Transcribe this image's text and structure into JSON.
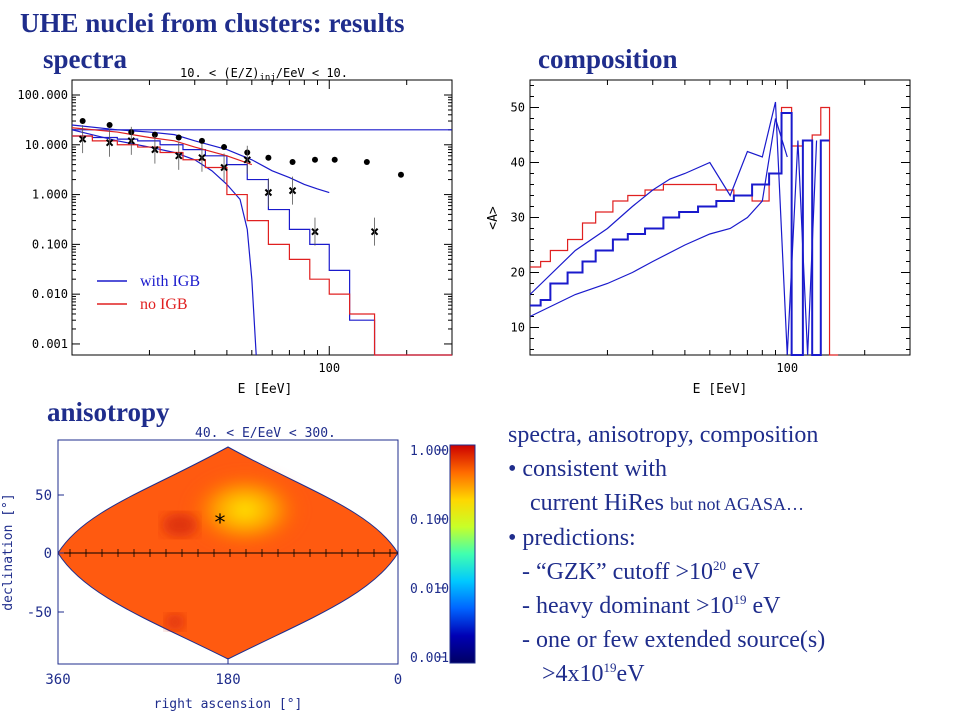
{
  "slide": {
    "title": "UHE nuclei from clusters: results",
    "spectra_heading": "spectra",
    "composition_heading": "composition",
    "anisotropy_heading": "anisotropy"
  },
  "summary": {
    "heading": "spectra, anisotropy, composition",
    "bullet1_line1": "• consistent  with",
    "bullet1_line2": "current HiRes",
    "bullet1_small": "but not AGASA…",
    "bullet2": "• predictions:",
    "item1_pre": "- “GZK” cutoff  >10",
    "item1_exp": "20",
    "item1_post": " eV",
    "item2_pre": "- heavy dominant >10",
    "item2_exp": "19",
    "item2_post": " eV",
    "item3": "- one or few extended source(s)",
    "item3_pre": ">4x10",
    "item3_exp": "19",
    "item3_post": "eV"
  },
  "colors": {
    "heading": "#1f2d8c",
    "igb": "#1a1acc",
    "noigb": "#e02020",
    "points": "#000000"
  },
  "chart_data": [
    {
      "type": "line",
      "title": "10. < (E/Z)inj/EeV < 10.",
      "title_pre": "10. < (E/Z)",
      "title_sub": "inj",
      "title_post": "/EeV < 10.",
      "xlabel": "E [EeV]",
      "ylabel": "",
      "xscale": "log",
      "yscale": "log",
      "xlim": [
        10,
        300
      ],
      "ylim": [
        0.0006,
        200
      ],
      "xtick_labels": [
        {
          "value": 100,
          "label": "100"
        }
      ],
      "ytick_labels": [
        {
          "value": 100,
          "label": "100.000"
        },
        {
          "value": 10,
          "label": "10.000"
        },
        {
          "value": 1,
          "label": "1.000"
        },
        {
          "value": 0.1,
          "label": "0.100"
        },
        {
          "value": 0.01,
          "label": "0.010"
        },
        {
          "value": 0.001,
          "label": "0.001"
        }
      ],
      "legend": [
        {
          "label": "with IGB",
          "color": "#1a1acc"
        },
        {
          "label": "no IGB",
          "color": "#e02020"
        }
      ],
      "legend_placement": "bottom-left",
      "series": [
        {
          "key": "igb_flat",
          "color": "#1a1acc",
          "style": "line",
          "x": [
            10,
            300
          ],
          "y": [
            20,
            20
          ]
        },
        {
          "key": "igb_upper",
          "color": "#1a1acc",
          "style": "line",
          "x": [
            10,
            15,
            20,
            25,
            30,
            40,
            50,
            60,
            70,
            80,
            90,
            100
          ],
          "y": [
            25,
            20,
            18,
            16,
            12,
            8,
            5,
            3,
            2.2,
            1.6,
            1.3,
            1.1
          ]
        },
        {
          "key": "igb_cutoff",
          "color": "#1a1acc",
          "style": "line",
          "x": [
            10,
            15,
            20,
            25,
            30,
            35,
            40,
            45,
            48,
            50,
            52
          ],
          "y": [
            20,
            12,
            9,
            7,
            5,
            3,
            1.6,
            0.8,
            0.2,
            0.02,
            0.0006
          ]
        },
        {
          "key": "igb_mid",
          "color": "#1a1acc",
          "style": "step",
          "x": [
            10,
            12,
            15,
            18,
            22,
            27,
            33,
            40,
            48,
            58,
            70,
            84,
            100,
            120,
            150,
            300
          ],
          "y": [
            15,
            14,
            13,
            12,
            10,
            8,
            6,
            4,
            2,
            0.5,
            0.2,
            0.1,
            0.03,
            0.003,
            0.0006,
            0.0006
          ]
        },
        {
          "key": "noigb_main",
          "color": "#e02020",
          "style": "step",
          "x": [
            10,
            12,
            15,
            18,
            22,
            27,
            33,
            40,
            48,
            58,
            70,
            84,
            100,
            120,
            150,
            300
          ],
          "y": [
            15,
            12,
            10,
            9,
            7,
            5,
            3.5,
            1,
            0.3,
            0.1,
            0.05,
            0.02,
            0.01,
            0.004,
            0.0006,
            0.0006
          ]
        },
        {
          "key": "noigb_upper",
          "color": "#e02020",
          "style": "line",
          "x": [
            10,
            15,
            20,
            25,
            30,
            40,
            50
          ],
          "y": [
            22,
            18,
            14,
            12,
            9,
            6,
            4
          ]
        }
      ],
      "points_dot": {
        "x": [
          11,
          14,
          17,
          21,
          26,
          32,
          39,
          48,
          58,
          72,
          88,
          105,
          140,
          190
        ],
        "y": [
          30,
          25,
          18,
          16,
          14,
          12,
          9,
          7,
          5.5,
          4.5,
          5,
          5,
          4.5,
          2.5
        ]
      },
      "points_cross": {
        "x": [
          11,
          14,
          17,
          21,
          26,
          32,
          39,
          48,
          58,
          72,
          88,
          150
        ],
        "y": [
          13,
          11,
          12,
          8,
          6,
          5.5,
          3.5,
          5,
          1.1,
          1.2,
          0.18,
          0.18
        ]
      }
    },
    {
      "type": "line",
      "title": "",
      "xlabel": "E [EeV]",
      "ylabel": "<A>",
      "xscale": "log",
      "xlim": [
        10,
        300
      ],
      "ylim": [
        5,
        55
      ],
      "xtick_labels": [
        {
          "value": 100,
          "label": "100"
        }
      ],
      "ytick_labels": [
        {
          "value": 10,
          "label": "10"
        },
        {
          "value": 20,
          "label": "20"
        },
        {
          "value": 30,
          "label": "30"
        },
        {
          "value": 40,
          "label": "40"
        },
        {
          "value": 50,
          "label": "50"
        }
      ],
      "series": [
        {
          "key": "red_step",
          "color": "#e02020",
          "style": "step",
          "x": [
            10,
            11,
            12,
            14,
            16,
            18,
            21,
            24,
            28,
            33,
            38,
            45,
            53,
            62,
            73,
            85,
            95,
            104,
            115,
            125,
            135,
            146
          ],
          "y": [
            21,
            22,
            24,
            26,
            29,
            31,
            33,
            34,
            35,
            36,
            36,
            36,
            35,
            34,
            33,
            38,
            50,
            43,
            44,
            45,
            50,
            5
          ]
        },
        {
          "key": "blue_upper",
          "color": "#1a1acc",
          "style": "line",
          "x": [
            10,
            15,
            20,
            25,
            30,
            35,
            40,
            50,
            60,
            70,
            80,
            90,
            100,
            110,
            120,
            130
          ],
          "y": [
            16,
            24,
            28,
            32,
            35,
            37,
            38,
            40,
            34,
            42,
            41,
            51,
            5,
            44,
            5,
            44
          ]
        },
        {
          "key": "blue_step",
          "color": "#1a1acc",
          "style": "step",
          "x": [
            10,
            11,
            12,
            14,
            16,
            18,
            21,
            24,
            28,
            33,
            38,
            45,
            53,
            62,
            73,
            85,
            95,
            104,
            115,
            125,
            135
          ],
          "y": [
            14,
            15,
            18,
            20,
            22,
            24,
            26,
            27,
            28,
            30,
            31,
            32,
            33,
            34,
            36,
            38,
            49,
            5,
            44,
            5,
            44
          ]
        },
        {
          "key": "blue_lower",
          "color": "#1a1acc",
          "style": "line",
          "x": [
            10,
            15,
            20,
            25,
            30,
            40,
            50,
            60,
            70,
            80,
            90,
            100
          ],
          "y": [
            12,
            16,
            18,
            20,
            22,
            25,
            27,
            28,
            30,
            33,
            48,
            41
          ]
        }
      ]
    },
    {
      "type": "heatmap",
      "projection": "sinusoidal",
      "title": "40. < E/EeV < 300.",
      "xlabel": "right ascension [°]",
      "ylabel": "declination [°]",
      "xtick_labels": [
        "360",
        "180",
        "0"
      ],
      "ytick_labels": [
        "50",
        "0",
        "-50"
      ],
      "colorbar_ticks": [
        "1.000",
        "0.100",
        "0.010",
        "0.001"
      ],
      "colorbar_scale": "log",
      "colorbar_range": [
        0.001,
        1.0
      ],
      "colorbar_stops": [
        "#cc0000",
        "#ff6a00",
        "#ffd600",
        "#c8ff28",
        "#40ffb0",
        "#00c8ff",
        "#0064ff",
        "#0000b4",
        "#000064"
      ],
      "hotspot_marker": "*",
      "hotspot_ra": 180,
      "hotspot_dec": 30
    }
  ]
}
